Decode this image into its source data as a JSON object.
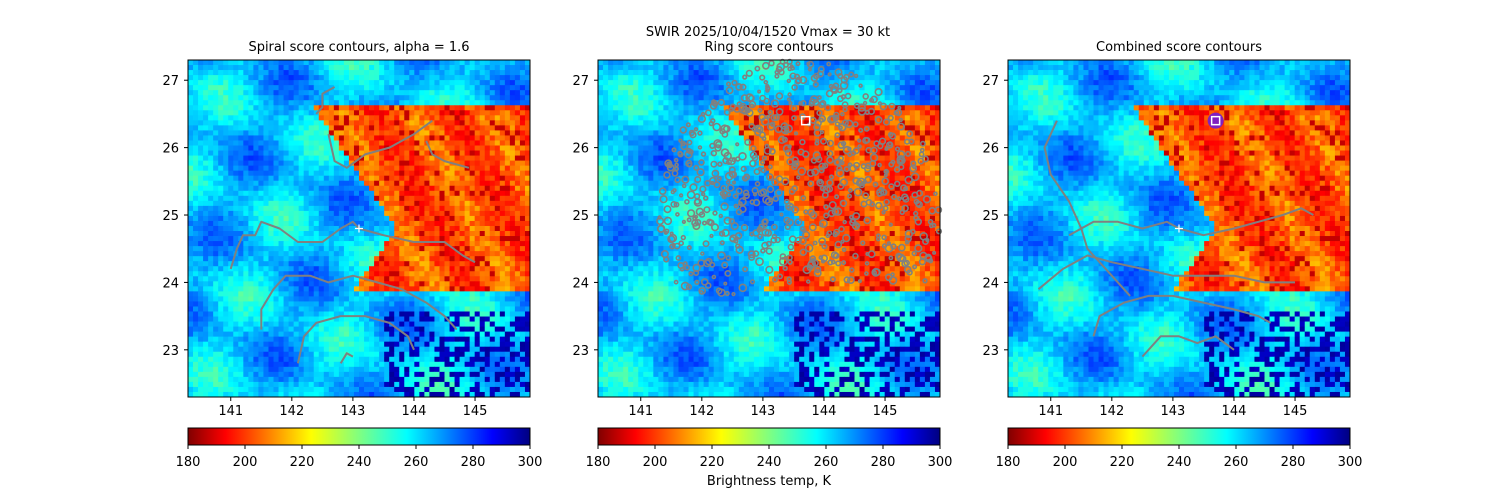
{
  "figure": {
    "suptitle": "SWIR  2025/10/04/1520    Vmax = 30 kt",
    "colorbar_label": "Brightness temp, K"
  },
  "chart_data": [
    {
      "type": "heatmap",
      "title": "Spiral score contours, alpha =  1.6",
      "xlim": [
        140.3,
        145.9
      ],
      "ylim": [
        22.3,
        27.3
      ],
      "xticks": [
        141,
        142,
        143,
        144,
        145
      ],
      "yticks": [
        23,
        24,
        25,
        26,
        27
      ],
      "colorbar": {
        "range": [
          180,
          300
        ],
        "ticks": [
          180,
          200,
          220,
          240,
          260,
          280,
          300
        ],
        "colormap": "jet_r"
      },
      "center_marker": {
        "x": 143.1,
        "y": 24.8,
        "symbol": "+"
      },
      "contours": [
        {
          "points": [
            [
              141.0,
              24.2
            ],
            [
              141.1,
              24.5
            ],
            [
              141.2,
              24.7
            ],
            [
              141.4,
              24.7
            ],
            [
              141.5,
              24.9
            ],
            [
              141.8,
              24.8
            ],
            [
              142.1,
              24.6
            ],
            [
              142.5,
              24.6
            ],
            [
              142.8,
              24.8
            ],
            [
              143.0,
              24.9
            ],
            [
              143.1,
              24.8
            ],
            [
              143.5,
              24.7
            ],
            [
              144.0,
              24.6
            ],
            [
              144.5,
              24.6
            ],
            [
              144.8,
              24.4
            ],
            [
              145.0,
              24.3
            ]
          ]
        },
        {
          "points": [
            [
              141.5,
              23.3
            ],
            [
              141.5,
              23.6
            ],
            [
              141.7,
              23.9
            ],
            [
              141.9,
              24.1
            ],
            [
              142.3,
              24.1
            ],
            [
              142.6,
              24.0
            ],
            [
              143.0,
              24.1
            ],
            [
              143.4,
              24.0
            ],
            [
              143.8,
              23.9
            ],
            [
              144.2,
              23.7
            ],
            [
              144.5,
              23.5
            ],
            [
              144.7,
              23.3
            ]
          ]
        },
        {
          "points": [
            [
              142.1,
              22.8
            ],
            [
              142.2,
              23.2
            ],
            [
              142.4,
              23.4
            ],
            [
              142.8,
              23.5
            ],
            [
              143.2,
              23.5
            ],
            [
              143.6,
              23.4
            ],
            [
              143.9,
              23.2
            ],
            [
              144.0,
              23.0
            ]
          ]
        },
        {
          "points": [
            [
              142.8,
              22.8
            ],
            [
              142.9,
              22.95
            ],
            [
              143.0,
              22.9
            ]
          ]
        },
        {
          "points": [
            [
              142.4,
              26.5
            ],
            [
              142.5,
              26.6
            ],
            [
              142.5,
              26.8
            ],
            [
              142.7,
              26.9
            ]
          ]
        },
        {
          "points": [
            [
              142.6,
              26.2
            ],
            [
              142.7,
              25.8
            ],
            [
              142.9,
              25.7
            ],
            [
              143.2,
              25.9
            ],
            [
              143.6,
              26.0
            ],
            [
              144.0,
              26.2
            ],
            [
              144.3,
              26.4
            ]
          ]
        },
        {
          "points": [
            [
              144.2,
              26.1
            ],
            [
              144.3,
              25.9
            ],
            [
              144.5,
              25.8
            ],
            [
              144.9,
              25.7
            ]
          ]
        }
      ]
    },
    {
      "type": "heatmap",
      "title": "Ring score contours",
      "xlim": [
        140.3,
        145.9
      ],
      "ylim": [
        22.3,
        27.3
      ],
      "xticks": [
        141,
        142,
        143,
        144,
        145
      ],
      "yticks": [
        23,
        24,
        25,
        26,
        27
      ],
      "colorbar": {
        "range": [
          180,
          300
        ],
        "ticks": [
          180,
          200,
          220,
          240,
          260,
          280,
          300
        ],
        "colormap": "jet_r"
      },
      "marker": {
        "x": 143.7,
        "y": 26.4,
        "symbol": "square"
      },
      "contour_region": {
        "center": [
          143.6,
          25.0
        ],
        "radius_deg": 2.3,
        "ymin": 24.0
      }
    },
    {
      "type": "heatmap",
      "title": "Combined score contours",
      "xlim": [
        140.3,
        145.9
      ],
      "ylim": [
        22.3,
        27.3
      ],
      "xticks": [
        141,
        142,
        143,
        144,
        145
      ],
      "yticks": [
        23,
        24,
        25,
        26,
        27
      ],
      "colorbar": {
        "range": [
          180,
          300
        ],
        "ticks": [
          180,
          200,
          220,
          240,
          260,
          280,
          300
        ],
        "colormap": "jet_r"
      },
      "center_marker": {
        "x": 143.1,
        "y": 24.8,
        "symbol": "+"
      },
      "marker": {
        "x": 143.7,
        "y": 26.4,
        "symbol": "square"
      },
      "contours": [
        {
          "points": [
            [
              141.7,
              23.2
            ],
            [
              141.8,
              23.5
            ],
            [
              142.2,
              23.7
            ],
            [
              142.6,
              23.8
            ],
            [
              143.0,
              23.8
            ],
            [
              143.5,
              23.7
            ],
            [
              144.0,
              23.6
            ],
            [
              144.4,
              23.5
            ],
            [
              144.6,
              23.4
            ]
          ]
        },
        {
          "points": [
            [
              140.8,
              23.9
            ],
            [
              141.2,
              24.2
            ],
            [
              141.6,
              24.4
            ],
            [
              142.0,
              24.3
            ],
            [
              142.5,
              24.2
            ],
            [
              143.0,
              24.1
            ],
            [
              143.5,
              24.1
            ],
            [
              144.0,
              24.1
            ],
            [
              144.5,
              24.0
            ],
            [
              145.0,
              24.0
            ]
          ]
        },
        {
          "points": [
            [
              141.3,
              24.7
            ],
            [
              141.7,
              24.9
            ],
            [
              142.1,
              24.9
            ],
            [
              142.5,
              24.8
            ],
            [
              142.9,
              24.9
            ],
            [
              143.1,
              24.8
            ],
            [
              143.5,
              24.7
            ],
            [
              144.0,
              24.8
            ],
            [
              144.4,
              24.9
            ],
            [
              144.8,
              25.0
            ],
            [
              145.1,
              25.1
            ],
            [
              145.3,
              25.0
            ]
          ]
        },
        {
          "points": [
            [
              141.1,
              26.4
            ],
            [
              140.9,
              26.0
            ],
            [
              141.0,
              25.6
            ],
            [
              141.3,
              25.2
            ],
            [
              141.5,
              24.8
            ],
            [
              141.6,
              24.5
            ],
            [
              141.7,
              24.4
            ],
            [
              141.9,
              24.2
            ],
            [
              142.1,
              24.0
            ],
            [
              142.3,
              23.8
            ]
          ]
        },
        {
          "points": [
            [
              142.5,
              22.9
            ],
            [
              142.8,
              23.2
            ],
            [
              143.1,
              23.2
            ],
            [
              143.4,
              23.1
            ],
            [
              143.7,
              23.2
            ],
            [
              144.0,
              23.0
            ]
          ]
        }
      ]
    }
  ]
}
